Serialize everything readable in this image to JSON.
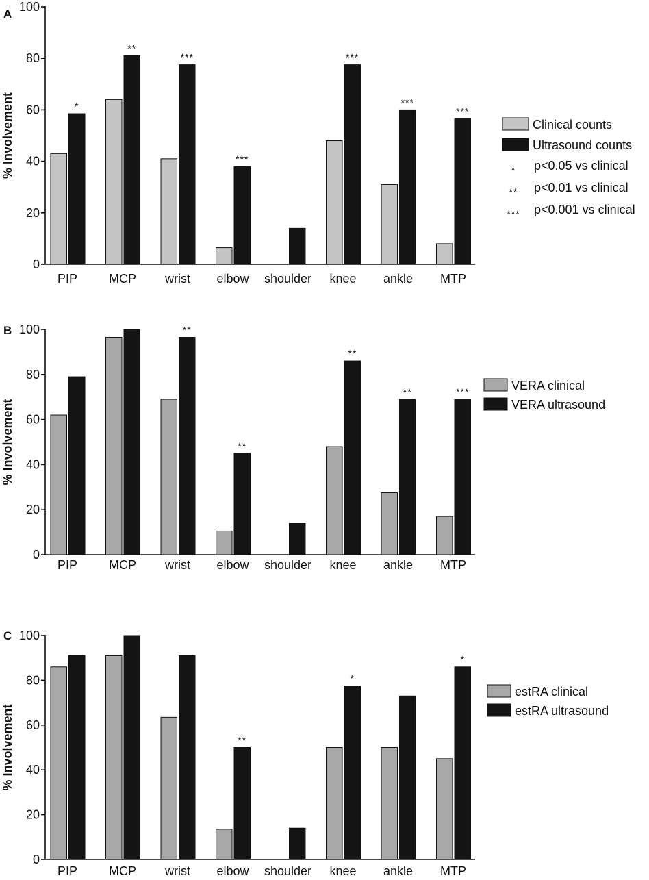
{
  "figure": {
    "colors": {
      "clinical_a": "#c4c4c4",
      "clinical_bc": "#a8a8a8",
      "ultrasound": "#141414",
      "outline": "#111111"
    }
  },
  "chart_data": [
    {
      "type": "bar",
      "panel": "A",
      "ylabel": "% Involvement",
      "ylim": [
        0,
        100
      ],
      "yticks": [
        0,
        20,
        40,
        60,
        80,
        100
      ],
      "categories": [
        "PIP",
        "MCP",
        "wrist",
        "elbow",
        "shoulder",
        "knee",
        "ankle",
        "MTP"
      ],
      "series": [
        {
          "name": "Clinical counts",
          "values": [
            43,
            64,
            41,
            6.5,
            0,
            48,
            31,
            8
          ]
        },
        {
          "name": "Ultrasound counts",
          "values": [
            58.5,
            81,
            77.5,
            38,
            14,
            77.5,
            60,
            56.5
          ]
        }
      ],
      "significance": [
        "*",
        "**",
        "***",
        "***",
        "",
        "***",
        "***",
        "***"
      ],
      "legend": {
        "position": "right",
        "notes": [
          {
            "symbol": "*",
            "text": "p<0.05 vs clinical"
          },
          {
            "symbol": "**",
            "text": "p<0.01 vs clinical"
          },
          {
            "symbol": "***",
            "text": "p<0.001 vs clinical"
          }
        ]
      }
    },
    {
      "type": "bar",
      "panel": "B",
      "ylabel": "% Involvement",
      "ylim": [
        0,
        100
      ],
      "yticks": [
        0,
        20,
        40,
        60,
        80,
        100
      ],
      "categories": [
        "PIP",
        "MCP",
        "wrist",
        "elbow",
        "shoulder",
        "knee",
        "ankle",
        "MTP"
      ],
      "series": [
        {
          "name": "VERA clinical",
          "values": [
            62,
            96.5,
            69,
            10.5,
            0,
            48,
            27.5,
            17
          ]
        },
        {
          "name": "VERA ultrasound",
          "values": [
            79,
            100,
            96.5,
            45,
            14,
            86,
            69,
            69
          ]
        }
      ],
      "significance": [
        "",
        "",
        "**",
        "**",
        "",
        "**",
        "**",
        "***"
      ],
      "legend": {
        "position": "right"
      }
    },
    {
      "type": "bar",
      "panel": "C",
      "ylabel": "% Involvement",
      "ylim": [
        0,
        100
      ],
      "yticks": [
        0,
        20,
        40,
        60,
        80,
        100
      ],
      "categories": [
        "PIP",
        "MCP",
        "wrist",
        "elbow",
        "shoulder",
        "knee",
        "ankle",
        "MTP"
      ],
      "series": [
        {
          "name": "estRA clinical",
          "values": [
            86,
            91,
            63.5,
            13.5,
            0,
            50,
            50,
            45
          ]
        },
        {
          "name": "estRA ultrasound",
          "values": [
            91,
            100,
            91,
            50,
            14,
            77.5,
            73,
            86
          ]
        }
      ],
      "significance": [
        "",
        "",
        "",
        "**",
        "",
        "*",
        "",
        "*"
      ],
      "legend": {
        "position": "right"
      }
    }
  ]
}
